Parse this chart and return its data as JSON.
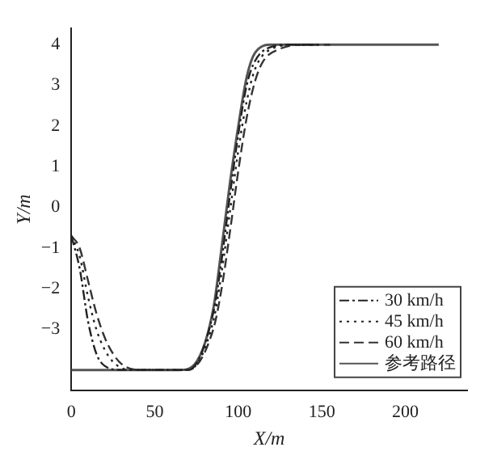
{
  "chart_data": {
    "type": "line",
    "xlabel": "X/m",
    "ylabel": "Y/m",
    "xlim": [
      0,
      237
    ],
    "xticks": [
      0,
      50,
      100,
      150,
      200
    ],
    "ylim": [
      -4.5,
      4.4
    ],
    "yticks": [
      -3,
      -2,
      -1,
      0,
      1,
      2,
      3,
      4
    ],
    "legend": "bottom right",
    "grid": false,
    "marker": "none",
    "series": [
      {
        "name": "30 km/h",
        "color": "#222222",
        "line_style": "dashdot",
        "x": [
          0,
          5,
          10,
          15,
          20,
          30,
          70,
          85,
          90,
          95,
          100,
          105,
          110,
          120,
          130,
          145
        ],
        "values": [
          -0.7,
          -1.5,
          -2.8,
          -3.6,
          -3.9,
          -4,
          -4,
          -2.6,
          -1.3,
          0.3,
          1.8,
          3,
          3.6,
          3.95,
          4,
          4
        ]
      },
      {
        "name": "45 km/h",
        "color": "#222222",
        "line_style": "dotted",
        "x": [
          0,
          5,
          10,
          15,
          20,
          25,
          35,
          70,
          85,
          90,
          95,
          100,
          105,
          110,
          120,
          135,
          150
        ],
        "values": [
          -0.7,
          -1.2,
          -2.2,
          -3,
          -3.5,
          -3.8,
          -4,
          -4,
          -2.8,
          -1.6,
          -0.1,
          1.4,
          2.6,
          3.4,
          3.9,
          4,
          4
        ]
      },
      {
        "name": "60 km/h",
        "color": "#333333",
        "line_style": "dashed",
        "x": [
          0,
          5,
          10,
          15,
          20,
          25,
          30,
          40,
          70,
          85,
          90,
          95,
          100,
          105,
          110,
          115,
          125,
          140,
          155
        ],
        "values": [
          -0.7,
          -1,
          -1.8,
          -2.6,
          -3.2,
          -3.6,
          -3.85,
          -4,
          -4,
          -3,
          -2,
          -0.6,
          0.9,
          2.2,
          3.1,
          3.6,
          3.9,
          4,
          4
        ]
      },
      {
        "name": "参考路径",
        "color": "#555555",
        "line_style": "solid",
        "x": [
          0,
          65,
          75,
          85,
          90,
          95,
          100,
          105,
          110,
          120,
          220
        ],
        "values": [
          -4,
          -4,
          -3.8,
          -2.5,
          -1,
          0.6,
          2,
          3.2,
          3.8,
          4,
          4
        ]
      }
    ]
  }
}
